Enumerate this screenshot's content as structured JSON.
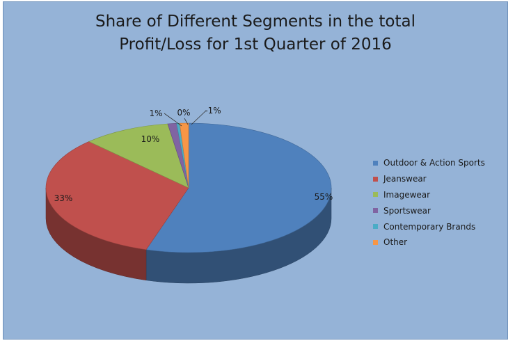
{
  "chart_data": {
    "type": "pie",
    "title": "Share of Different Segments in the total\nProfit/Loss for 1st Quarter of 2016",
    "categories": [
      "Outdoor & Action Sports",
      "Jeanswear",
      "Imagewear",
      "Sportswear",
      "Contemporary Brands",
      "Other"
    ],
    "values": [
      55,
      33,
      10,
      1,
      0,
      -1
    ],
    "data_labels": [
      "55%",
      "33%",
      "10%",
      "1%",
      "0%",
      "-1%"
    ],
    "colors": [
      "#4f81bd",
      "#c0504d",
      "#9bbb59",
      "#8064a2",
      "#4bacc6",
      "#f79646"
    ],
    "legend_position": "right",
    "style": "3d-pie"
  }
}
